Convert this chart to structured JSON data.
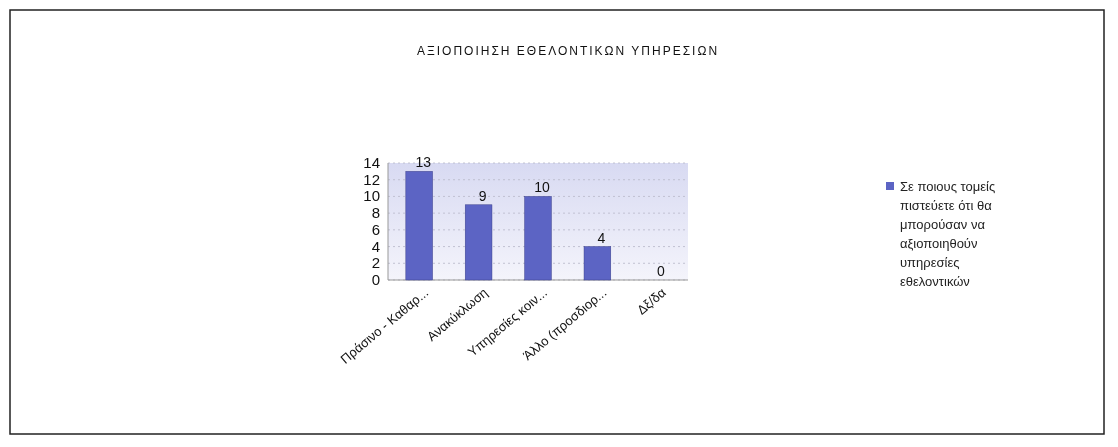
{
  "chart_data": {
    "type": "bar",
    "title": "ΑΞΙΟΠΟΙΗΣΗ ΕΘΕΛΟΝΤΙΚΩΝ ΥΠΗΡΕΣΙΩΝ",
    "categories": [
      "Πράσινο - Καθαρ...",
      "Ανακύκλωση",
      "Υπηρεσίες κοιν...",
      "Άλλο (προσδιορ...",
      "Δξ/δα"
    ],
    "series": [
      {
        "name": "Σε ποιους τομείς πιστεύετε ότι θα μπορούσαν να αξιοποιηθούν υπηρεσίες εθελοντικών",
        "color": "#5c64c4",
        "values": [
          13,
          9,
          10,
          4,
          0
        ]
      }
    ],
    "ylim": [
      0,
      14
    ],
    "yticks": [
      0,
      2,
      4,
      6,
      8,
      10,
      12,
      14
    ],
    "grid": "y",
    "legend": "right",
    "data_labels": true
  }
}
